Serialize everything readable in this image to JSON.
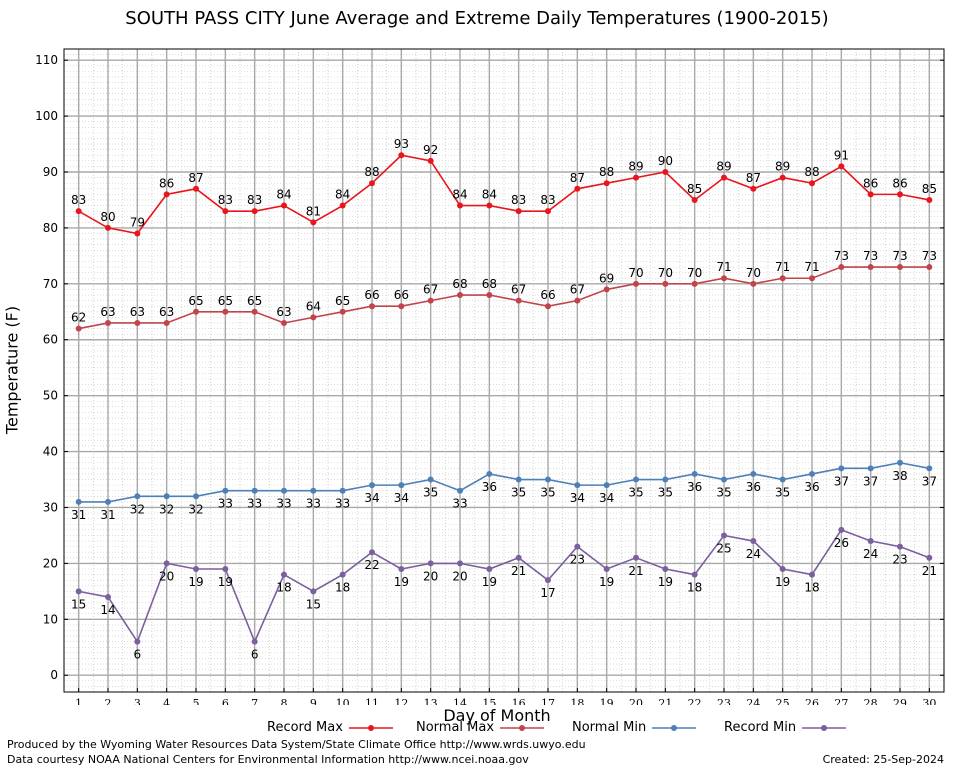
{
  "chart_data": {
    "type": "line",
    "title": "SOUTH PASS CITY June Average and Extreme Daily Temperatures (1900-2015)",
    "xlabel": "Day of Month",
    "ylabel": "Temperature (F)",
    "x": [
      1,
      2,
      3,
      4,
      5,
      6,
      7,
      8,
      9,
      10,
      11,
      12,
      13,
      14,
      15,
      16,
      17,
      18,
      19,
      20,
      21,
      22,
      23,
      24,
      25,
      26,
      27,
      28,
      29,
      30
    ],
    "xlim": [
      0.5,
      30.5
    ],
    "ylim": [
      -3,
      112
    ],
    "yticks": [
      0,
      10,
      20,
      30,
      40,
      50,
      60,
      70,
      80,
      90,
      100,
      110
    ],
    "grid": true,
    "legend_position": "bottom",
    "series": [
      {
        "name": "Record Max",
        "color": "#e8161c",
        "label_position": "above",
        "values": [
          83,
          80,
          79,
          86,
          87,
          83,
          83,
          84,
          81,
          84,
          88,
          93,
          92,
          84,
          84,
          83,
          83,
          87,
          88,
          89,
          90,
          85,
          89,
          87,
          89,
          88,
          91,
          86,
          86,
          85
        ]
      },
      {
        "name": "Normal Max",
        "color": "#c0444a",
        "label_position": "above",
        "values": [
          62,
          63,
          63,
          63,
          65,
          65,
          65,
          63,
          64,
          65,
          66,
          66,
          67,
          68,
          68,
          67,
          66,
          67,
          69,
          70,
          70,
          70,
          71,
          70,
          71,
          71,
          73,
          73,
          73,
          73
        ]
      },
      {
        "name": "Normal Min",
        "color": "#4e80b8",
        "label_position": "below",
        "values": [
          31,
          31,
          32,
          32,
          32,
          33,
          33,
          33,
          33,
          33,
          34,
          34,
          35,
          33,
          36,
          35,
          35,
          34,
          34,
          35,
          35,
          36,
          35,
          36,
          35,
          36,
          37,
          37,
          38,
          37
        ]
      },
      {
        "name": "Record Min",
        "color": "#7c5f9e",
        "label_position": "below",
        "values": [
          15,
          14,
          6,
          20,
          19,
          19,
          6,
          18,
          15,
          18,
          22,
          19,
          20,
          20,
          19,
          21,
          17,
          23,
          19,
          21,
          19,
          18,
          25,
          24,
          19,
          18,
          26,
          24,
          23,
          21
        ]
      }
    ]
  },
  "footer": {
    "produced_by": "Produced by the Wyoming Water Resources Data System/State Climate Office http://www.wrds.uwyo.edu",
    "courtesy": "Data courtesy NOAA National Centers for Environmental Information http://www.ncei.noaa.gov",
    "created": "Created:  25-Sep-2024"
  }
}
